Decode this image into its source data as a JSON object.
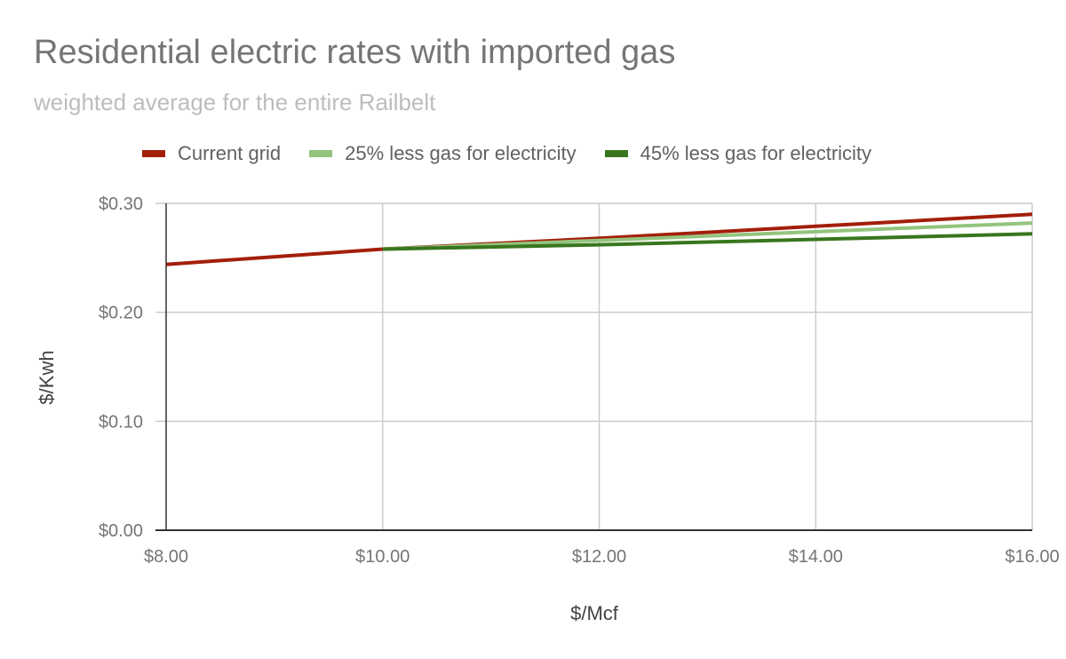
{
  "chart_data": {
    "type": "line",
    "title": "Residential electric rates with imported gas",
    "subtitle": "weighted average for the entire Railbelt",
    "xlabel": "$/Mcf",
    "ylabel": "$/Kwh",
    "xlim": [
      8,
      16
    ],
    "ylim": [
      0,
      0.3
    ],
    "x_ticks": [
      8,
      10,
      12,
      14,
      16
    ],
    "x_tick_labels": [
      "$8.00",
      "$10.00",
      "$12.00",
      "$14.00",
      "$16.00"
    ],
    "y_ticks": [
      0,
      0.1,
      0.2,
      0.3
    ],
    "y_tick_labels": [
      "$0.00",
      "$0.10",
      "$0.20",
      "$0.30"
    ],
    "grid": true,
    "legend_position": "top",
    "series": [
      {
        "name": "Current grid",
        "color": "#a31f0b",
        "x": [
          8,
          10,
          12,
          14,
          16
        ],
        "y": [
          0.244,
          0.258,
          0.268,
          0.279,
          0.29
        ]
      },
      {
        "name": "25% less gas for electricity",
        "color": "#93c47d",
        "x": [
          10,
          12,
          14,
          16
        ],
        "y": [
          0.258,
          0.266,
          0.274,
          0.282
        ]
      },
      {
        "name": "45% less gas for electricity",
        "color": "#38761d",
        "x": [
          10,
          12,
          14,
          16
        ],
        "y": [
          0.258,
          0.262,
          0.267,
          0.272
        ]
      }
    ]
  }
}
